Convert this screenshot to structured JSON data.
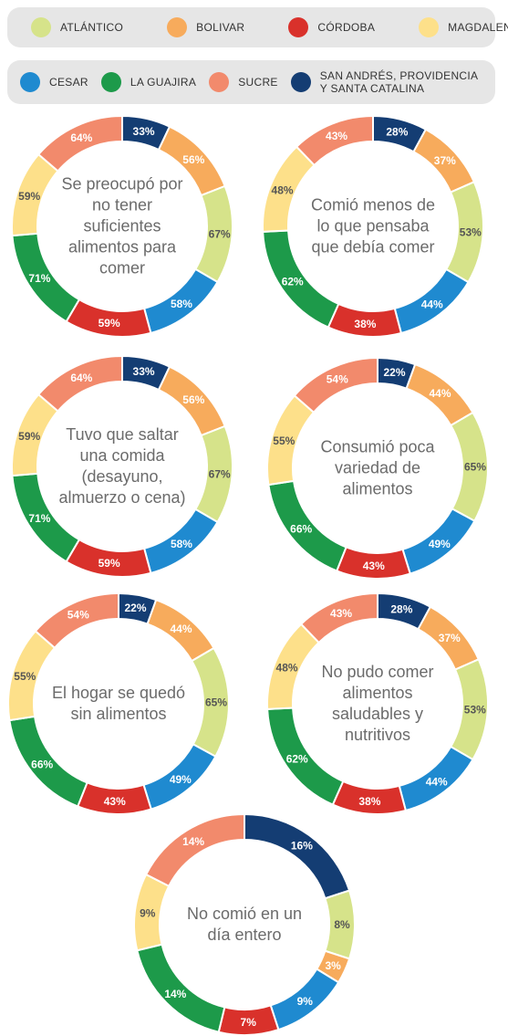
{
  "legend": [
    [
      {
        "name": "ATLÁNTICO",
        "color": "#d6e38a"
      },
      {
        "name": "BOLIVAR",
        "color": "#f7ab5c"
      },
      {
        "name": "CÓRDOBA",
        "color": "#d9312b"
      },
      {
        "name": "MAGDALENA",
        "color": "#fde08a"
      }
    ],
    [
      {
        "name": "CESAR",
        "color": "#1f8ad0"
      },
      {
        "name": "LA GUAJIRA",
        "color": "#1d9a4a"
      },
      {
        "name": "SUCRE",
        "color": "#f28a6c"
      },
      {
        "name": "SAN ANDRÉS, PROVIDENCIA Y SANTA CATALINA",
        "color": "#143d73"
      }
    ]
  ],
  "chart_data": [
    {
      "type": "pie",
      "title": "Se preocupó por no tener suficientes alimentos para comer",
      "categories": [
        "SAN ANDRÉS, PROVIDENCIA Y SANTA CATALINA",
        "BOLIVAR",
        "ATLÁNTICO",
        "CESAR",
        "CÓRDOBA",
        "LA GUAJIRA",
        "MAGDALENA",
        "SUCRE"
      ],
      "values": [
        33,
        56,
        67,
        58,
        59,
        71,
        59,
        64
      ],
      "value_labels": [
        "33%",
        "56%",
        "67%",
        "58%",
        "59%",
        "71%",
        "59%",
        "64%"
      ]
    },
    {
      "type": "pie",
      "title": "Comió menos de lo que pensaba que debía comer",
      "categories": [
        "SAN ANDRÉS, PROVIDENCIA Y SANTA CATALINA",
        "BOLIVAR",
        "ATLÁNTICO",
        "CESAR",
        "CÓRDOBA",
        "LA GUAJIRA",
        "MAGDALENA",
        "SUCRE"
      ],
      "values": [
        28,
        37,
        53,
        44,
        38,
        62,
        48,
        43
      ],
      "value_labels": [
        "28%",
        "37%",
        "53%",
        "44%",
        "38%",
        "62%",
        "48%",
        "43%"
      ]
    },
    {
      "type": "pie",
      "title": "Tuvo que saltar una comida (desayuno, almuerzo o cena)",
      "categories": [
        "SAN ANDRÉS, PROVIDENCIA Y SANTA CATALINA",
        "BOLIVAR",
        "ATLÁNTICO",
        "CESAR",
        "CÓRDOBA",
        "LA GUAJIRA",
        "MAGDALENA",
        "SUCRE"
      ],
      "values": [
        33,
        56,
        67,
        58,
        59,
        71,
        59,
        64
      ],
      "value_labels": [
        "33%",
        "56%",
        "67%",
        "58%",
        "59%",
        "71%",
        "59%",
        "64%"
      ]
    },
    {
      "type": "pie",
      "title": "Consumió poca variedad de alimentos",
      "categories": [
        "SAN ANDRÉS, PROVIDENCIA Y SANTA CATALINA",
        "BOLIVAR",
        "ATLÁNTICO",
        "CESAR",
        "CÓRDOBA",
        "LA GUAJIRA",
        "MAGDALENA",
        "SUCRE"
      ],
      "values": [
        22,
        44,
        65,
        49,
        43,
        66,
        55,
        54
      ],
      "value_labels": [
        "22%",
        "44%",
        "65%",
        "49%",
        "43%",
        "66%",
        "55%",
        "54%"
      ]
    },
    {
      "type": "pie",
      "title": "El hogar se quedó sin alimentos",
      "categories": [
        "SAN ANDRÉS, PROVIDENCIA Y SANTA CATALINA",
        "BOLIVAR",
        "ATLÁNTICO",
        "CESAR",
        "CÓRDOBA",
        "LA GUAJIRA",
        "MAGDALENA",
        "SUCRE"
      ],
      "values": [
        22,
        44,
        65,
        49,
        43,
        66,
        55,
        54
      ],
      "value_labels": [
        "22%",
        "44%",
        "65%",
        "49%",
        "43%",
        "66%",
        "55%",
        "54%"
      ]
    },
    {
      "type": "pie",
      "title": "No pudo comer alimentos saludables y nutritivos",
      "categories": [
        "SAN ANDRÉS, PROVIDENCIA Y SANTA CATALINA",
        "BOLIVAR",
        "ATLÁNTICO",
        "CESAR",
        "CÓRDOBA",
        "LA GUAJIRA",
        "MAGDALENA",
        "SUCRE"
      ],
      "values": [
        28,
        37,
        53,
        44,
        38,
        62,
        48,
        43
      ],
      "value_labels": [
        "28%",
        "37%",
        "53%",
        "44%",
        "38%",
        "62%",
        "48%",
        "43%"
      ]
    },
    {
      "type": "pie",
      "title": "No comió en un día entero",
      "categories": [
        "SAN ANDRÉS, PROVIDENCIA Y SANTA CATALINA",
        "ATLÁNTICO",
        "BOLIVAR",
        "CESAR",
        "CÓRDOBA",
        "LA GUAJIRA",
        "MAGDALENA",
        "SUCRE"
      ],
      "values": [
        16,
        8,
        3,
        9,
        7,
        14,
        9,
        14
      ],
      "value_labels": [
        "16%",
        "8%",
        "3%",
        "9%",
        "7%",
        "14%",
        "9%",
        "14%"
      ]
    }
  ]
}
